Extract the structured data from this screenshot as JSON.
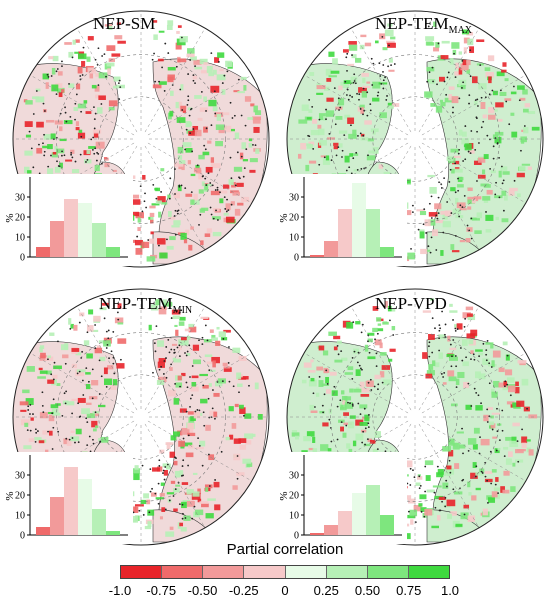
{
  "panels": [
    {
      "id": "sm",
      "title_main": "NEP-SM",
      "title_sub": "",
      "hist": [
        5,
        18,
        29,
        27,
        17,
        5
      ],
      "tone": "mixed"
    },
    {
      "id": "tmax",
      "title_main": "NEP-TEM",
      "title_sub": "MAX",
      "hist": [
        1,
        8,
        24,
        37,
        24,
        5
      ],
      "tone": "green"
    },
    {
      "id": "tmin",
      "title_main": "NEP-TEM",
      "title_sub": "MIN",
      "hist": [
        4,
        19,
        34,
        28,
        13,
        2
      ],
      "tone": "mixed"
    },
    {
      "id": "vpd",
      "title_main": "NEP-VPD",
      "title_sub": "",
      "hist": [
        1,
        5,
        12,
        21,
        25,
        10
      ],
      "tone": "green"
    }
  ],
  "hist_axis": {
    "ylabel": "%",
    "ticks": [
      "0",
      "10",
      "20",
      "30"
    ]
  },
  "legend": {
    "title": "Partial correlation",
    "ticks": [
      "-1.0",
      "-0.75",
      "-0.50",
      "-0.25",
      "0",
      "0.25",
      "0.50",
      "0.75",
      "1.0"
    ],
    "colors": [
      "#e8242a",
      "#ef6a6a",
      "#f29a9a",
      "#f6c9c9",
      "#e7fbe7",
      "#b6f0b6",
      "#7ee67e",
      "#3fd93f"
    ]
  },
  "colors": {
    "red_strong": "#e8242a",
    "green_strong": "#3fd93f",
    "green_light": "#b6f0b6",
    "red_light": "#f29a9a"
  }
}
